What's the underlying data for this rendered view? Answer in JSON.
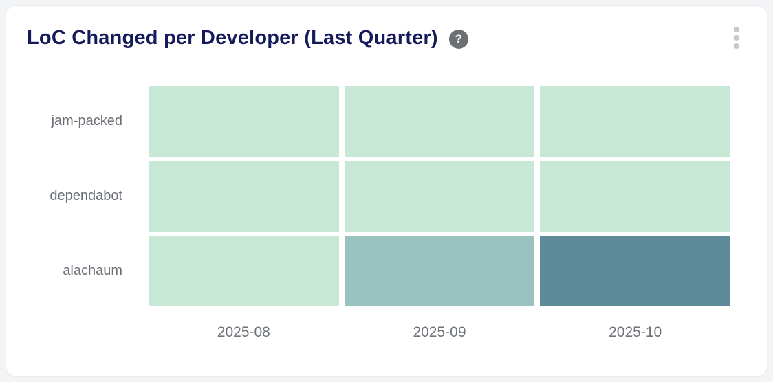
{
  "card": {
    "title": "LoC Changed per Developer (Last Quarter)",
    "help_glyph": "?"
  },
  "colors": {
    "page_background": "#f3f4f6",
    "card_background": "#ffffff",
    "card_border": "#e9ebee",
    "title_text": "#141a5a",
    "axis_label_text": "#6e7378",
    "help_icon_background": "#6b7075",
    "help_icon_glyph": "#ffffff",
    "kebab_dots": "#c6c8cc"
  },
  "chart_data": {
    "type": "heatmap",
    "title": "LoC Changed per Developer (Last Quarter)",
    "rows": [
      "jam-packed",
      "dependabot",
      "alachaum"
    ],
    "columns": [
      "2025-08",
      "2025-09",
      "2025-10"
    ],
    "values_labeled_on_chart": false,
    "color_scale": {
      "low": "#c8e8d6",
      "mid": "#9ac3c0",
      "high": "#5e8b99"
    },
    "cell_colors": [
      [
        "#c8e8d6",
        "#c8e8d6",
        "#c8e8d6"
      ],
      [
        "#c8e8d6",
        "#c8e8d6",
        "#c8e8d6"
      ],
      [
        "#c8e8d6",
        "#9ac3c0",
        "#5e8b99"
      ]
    ],
    "relative_intensity_estimate": [
      [
        0.05,
        0.05,
        0.05
      ],
      [
        0.05,
        0.05,
        0.05
      ],
      [
        0.05,
        0.5,
        1.0
      ]
    ],
    "legend": "none",
    "grid_gaps": true
  }
}
